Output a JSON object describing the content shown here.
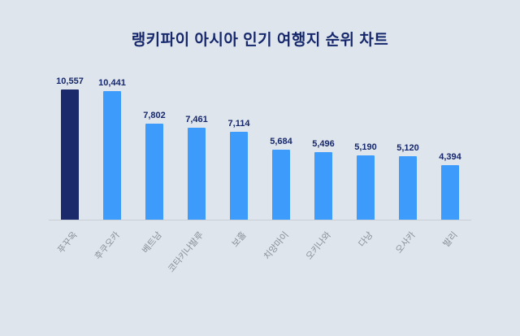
{
  "title": "랭키파이 아시아 인기 여행지 순위 차트",
  "colors": {
    "background": "#dfe5ec",
    "title": "#16286b",
    "value_label": "#16286b",
    "category_label": "#8b909a",
    "axis_line": "#c9cdd4",
    "bar_primary": "#3d9bfc",
    "bar_highlight": "#1b2a6b"
  },
  "chart_data": {
    "type": "bar",
    "title": "랭키파이 아시아 인기 여행지 순위 차트",
    "categories": [
      "푸꾸옥",
      "후쿠오카",
      "베트남",
      "코타키나발루",
      "보홀",
      "치앙마이",
      "오키나와",
      "다낭",
      "오사카",
      "발리"
    ],
    "values": [
      10557,
      10441,
      7802,
      7461,
      7114,
      5684,
      5496,
      5190,
      5120,
      4394
    ],
    "value_labels": [
      "10,557",
      "10,441",
      "7,802",
      "7,461",
      "7,114",
      "5,684",
      "5,496",
      "5,190",
      "5,120",
      "4,394"
    ],
    "highlight_index": 0,
    "xlabel": "",
    "ylabel": "",
    "ylim": [
      0,
      11000
    ],
    "grid": false,
    "legend": false,
    "value_labels_position": "above-bars",
    "category_label_rotation_deg": -50
  }
}
